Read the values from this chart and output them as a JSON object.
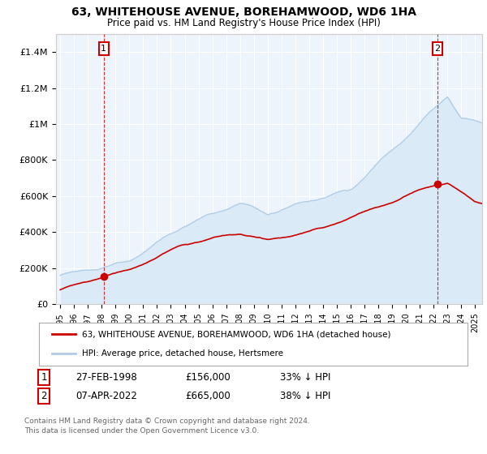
{
  "title": "63, WHITEHOUSE AVENUE, BOREHAMWOOD, WD6 1HA",
  "subtitle": "Price paid vs. HM Land Registry's House Price Index (HPI)",
  "ylim": [
    0,
    1500000
  ],
  "yticks": [
    0,
    200000,
    400000,
    600000,
    800000,
    1000000,
    1200000,
    1400000
  ],
  "ytick_labels": [
    "£0",
    "£200K",
    "£400K",
    "£600K",
    "£800K",
    "£1M",
    "£1.2M",
    "£1.4M"
  ],
  "hpi_color": "#aecde8",
  "hpi_fill_color": "#daeaf6",
  "price_color": "#cc0000",
  "point1_year": 1998.15,
  "point1_value": 156000,
  "point2_year": 2022.27,
  "point2_value": 665000,
  "legend_label1": "63, WHITEHOUSE AVENUE, BOREHAMWOOD, WD6 1HA (detached house)",
  "legend_label2": "HPI: Average price, detached house, Hertsmere",
  "footer1": "Contains HM Land Registry data © Crown copyright and database right 2024.",
  "footer2": "This data is licensed under the Open Government Licence v3.0.",
  "table_row1": [
    "1",
    "27-FEB-1998",
    "£156,000",
    "33% ↓ HPI"
  ],
  "table_row2": [
    "2",
    "07-APR-2022",
    "£665,000",
    "38% ↓ HPI"
  ],
  "background_color": "#ffffff",
  "plot_bg_color": "#eef4fb",
  "grid_color": "#ffffff"
}
